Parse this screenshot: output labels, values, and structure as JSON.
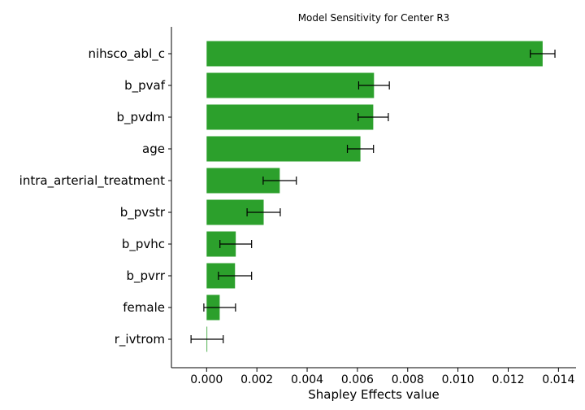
{
  "chart_data": {
    "type": "bar",
    "orientation": "horizontal",
    "title": "Model Sensitivity for Center R3",
    "xlabel": "Shapley Effects value",
    "ylabel": "",
    "xlim": [
      -0.0014,
      0.0147
    ],
    "xticks": [
      "0.000",
      "0.002",
      "0.004",
      "0.006",
      "0.008",
      "0.010",
      "0.012",
      "0.014"
    ],
    "bar_color": "#2ca02c",
    "grid": false,
    "categories": [
      "nihsco_abl_c",
      "b_pvaf",
      "b_pvdm",
      "age",
      "intra_arterial_treatment",
      "b_pvstr",
      "b_pvhc",
      "b_pvrr",
      "female",
      "r_ivtrom"
    ],
    "values": [
      0.01337,
      0.00666,
      0.00663,
      0.00612,
      0.00291,
      0.00227,
      0.00116,
      0.00113,
      0.00052,
      2e-05
    ],
    "errors": [
      0.00049,
      0.00061,
      0.0006,
      0.00052,
      0.00066,
      0.00066,
      0.00063,
      0.00066,
      0.00063,
      0.00064
    ]
  }
}
